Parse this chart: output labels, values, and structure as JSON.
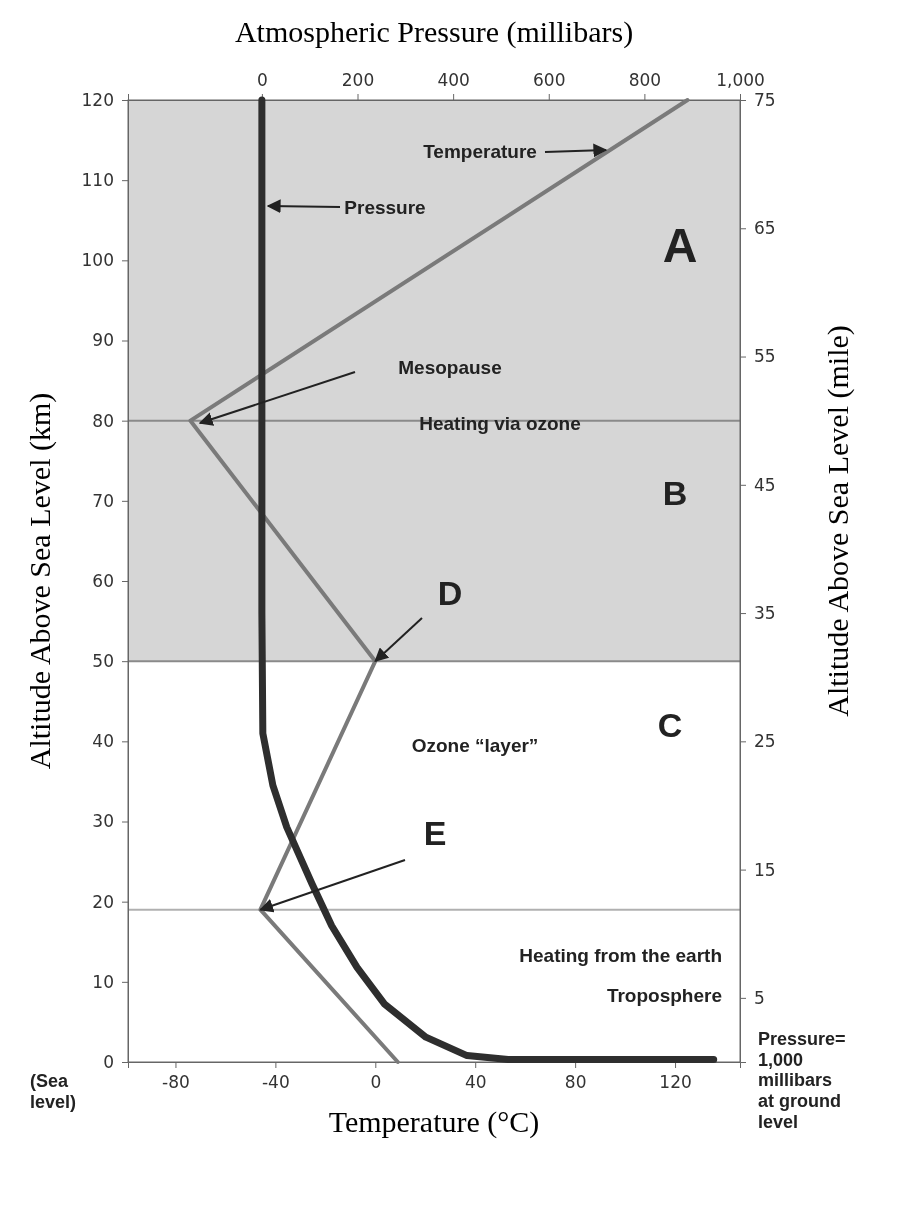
{
  "chart_data": {
    "type": "line",
    "x2label": "Atmospheric Pressure (millibars)",
    "xlabel": "Temperature (°C)",
    "ylabel": "Altitude Above Sea Level (km)",
    "y2label": "Altitude Above Sea Level (mile)",
    "xlim": [
      -99,
      146
    ],
    "xticks": [
      -80,
      -40,
      0,
      40,
      80,
      120
    ],
    "x2lim": [
      -280,
      1000
    ],
    "x2ticks": [
      0,
      200,
      400,
      600,
      800,
      {
        "value": 1000,
        "label": "1,000"
      }
    ],
    "ylim": [
      0,
      120
    ],
    "yticks": [
      0,
      10,
      20,
      30,
      40,
      50,
      60,
      70,
      80,
      90,
      100,
      110,
      120
    ],
    "y2lim": [
      0,
      75
    ],
    "y2ticks": [
      5,
      15,
      25,
      35,
      45,
      55,
      65,
      75
    ],
    "series": [
      {
        "color": "#7a7a7a",
        "x": [
          9,
          -46,
          0,
          -74,
          125
        ],
        "values": [
          0,
          19,
          50,
          80,
          120
        ]
      },
      {
        "color": "#2e2e2e",
        "axis": "x2",
        "x": [
          0,
          0,
          0,
          2,
          23,
          52,
          105,
          146,
          199,
          257,
          343,
          429,
          515,
          945
        ],
        "values": [
          120,
          90,
          56,
          41,
          34.5,
          29.3,
          22.2,
          17,
          11.8,
          7.2,
          3.1,
          0.8,
          0.3,
          0.3
        ]
      }
    ],
    "bands": [
      {
        "axis": "y",
        "from": 50,
        "to": 120,
        "color": "#d6d6d6"
      }
    ],
    "ref_lines": [
      {
        "axis": "y",
        "value": 80,
        "color": "#8a8a8a"
      },
      {
        "axis": "y",
        "value": 50,
        "color": "#8a8a8a"
      },
      {
        "axis": "y",
        "value": 19,
        "color": "#b0b0b0"
      }
    ],
    "annotations": [
      "Temperature",
      "Pressure",
      "Mesopause",
      "Heating via ozone",
      "A",
      "B",
      "C",
      {
        "text": "D",
        "x": 0,
        "y": 50
      },
      "Ozone “layer”",
      {
        "text": "E",
        "x": -46,
        "y": 19
      },
      "Heating from the earth",
      "Troposphere",
      "(Sea level)",
      "Pressure= 1,000 millibars at ground level"
    ]
  }
}
